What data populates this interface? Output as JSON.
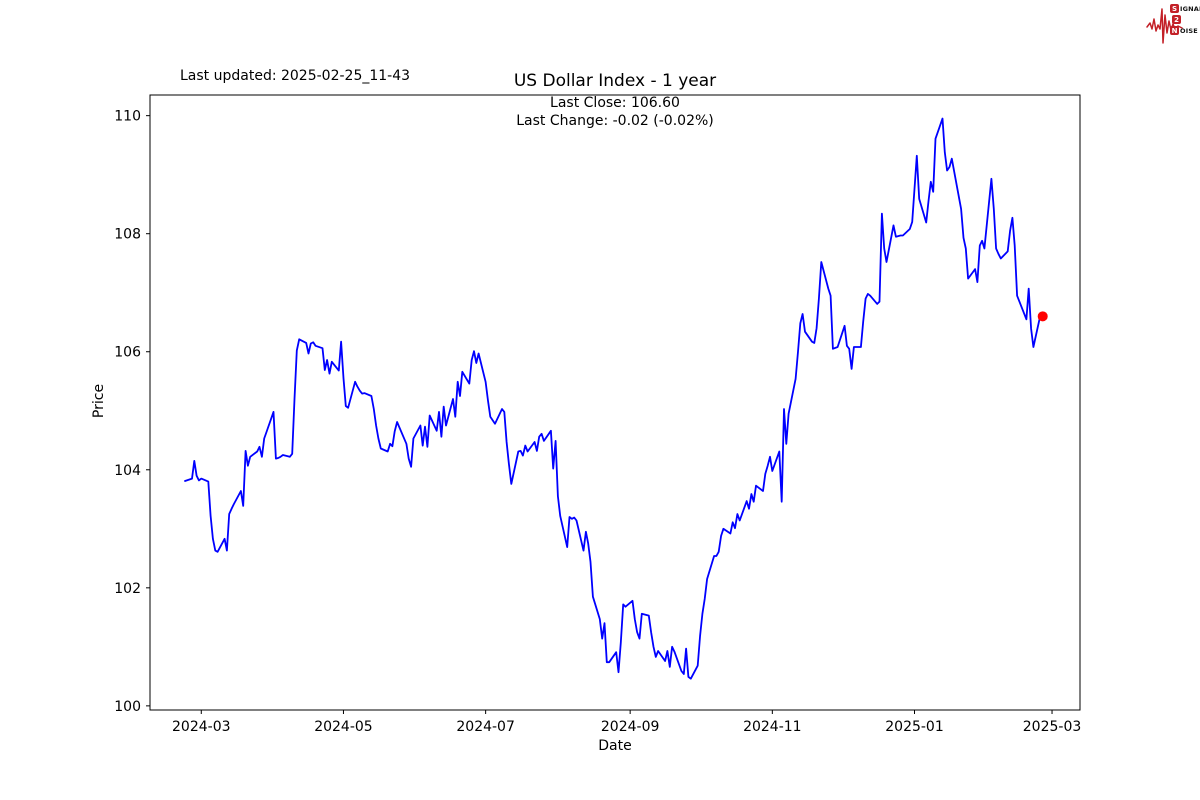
{
  "header": {
    "last_updated": "Last updated: 2025-02-25_11-43",
    "title": "US Dollar Index - 1 year",
    "annotation_line1": "Last Close: 106.60",
    "annotation_line2": "Last Change: -0.02 (-0.02%)"
  },
  "logo": {
    "line1_initial": "S",
    "line1_rest": "IGNAL",
    "line2_initial": "2",
    "line2_rest": "",
    "line3_initial": "N",
    "line3_rest": "OISE",
    "accent_color": "#c32027"
  },
  "chart_data": {
    "type": "line",
    "title": "US Dollar Index - 1 year",
    "xlabel": "Date",
    "ylabel": "Price",
    "legend": "none",
    "grid": false,
    "line_color": "#0000ff",
    "marker_color": "#ff0000",
    "axis_color": "#000000",
    "last_close": 106.6,
    "last_change": "-0.02 (-0.02%)",
    "ylim": [
      99.93,
      110.35
    ],
    "y_ticks": [
      100,
      102,
      104,
      106,
      108,
      110
    ],
    "xlim": [
      "2024-02-08",
      "2025-03-13"
    ],
    "x_tick_dates": [
      "2024-03-01",
      "2024-05-01",
      "2024-07-01",
      "2024-09-01",
      "2024-11-01",
      "2025-01-01",
      "2025-03-01"
    ],
    "x_tick_labels": [
      "2024-03",
      "2024-05",
      "2024-07",
      "2024-09",
      "2024-11",
      "2025-01",
      "2025-03"
    ],
    "points": [
      [
        "2024-02-23",
        103.81
      ],
      [
        "2024-02-26",
        103.85
      ],
      [
        "2024-02-27",
        104.15
      ],
      [
        "2024-02-28",
        103.9
      ],
      [
        "2024-02-29",
        103.82
      ],
      [
        "2024-03-01",
        103.85
      ],
      [
        "2024-03-04",
        103.8
      ],
      [
        "2024-03-05",
        103.22
      ],
      [
        "2024-03-06",
        102.83
      ],
      [
        "2024-03-07",
        102.63
      ],
      [
        "2024-03-08",
        102.61
      ],
      [
        "2024-03-11",
        102.83
      ],
      [
        "2024-03-12",
        102.63
      ],
      [
        "2024-03-13",
        103.25
      ],
      [
        "2024-03-14",
        103.34
      ],
      [
        "2024-03-15",
        103.42
      ],
      [
        "2024-03-18",
        103.64
      ],
      [
        "2024-03-19",
        103.39
      ],
      [
        "2024-03-20",
        104.32
      ],
      [
        "2024-03-21",
        104.07
      ],
      [
        "2024-03-22",
        104.22
      ],
      [
        "2024-03-25",
        104.31
      ],
      [
        "2024-03-26",
        104.39
      ],
      [
        "2024-03-27",
        104.22
      ],
      [
        "2024-03-28",
        104.53
      ],
      [
        "2024-03-29",
        104.64
      ],
      [
        "2024-04-01",
        104.98
      ],
      [
        "2024-04-02",
        104.19
      ],
      [
        "2024-04-03",
        104.2
      ],
      [
        "2024-04-04",
        104.22
      ],
      [
        "2024-04-05",
        104.25
      ],
      [
        "2024-04-08",
        104.22
      ],
      [
        "2024-04-09",
        104.27
      ],
      [
        "2024-04-10",
        105.2
      ],
      [
        "2024-04-11",
        106.02
      ],
      [
        "2024-04-12",
        106.21
      ],
      [
        "2024-04-15",
        106.15
      ],
      [
        "2024-04-16",
        105.97
      ],
      [
        "2024-04-17",
        106.14
      ],
      [
        "2024-04-18",
        106.16
      ],
      [
        "2024-04-19",
        106.1
      ],
      [
        "2024-04-22",
        106.06
      ],
      [
        "2024-04-23",
        105.69
      ],
      [
        "2024-04-24",
        105.86
      ],
      [
        "2024-04-25",
        105.63
      ],
      [
        "2024-04-26",
        105.83
      ],
      [
        "2024-04-29",
        105.68
      ],
      [
        "2024-04-30",
        106.17
      ],
      [
        "2024-05-01",
        105.55
      ],
      [
        "2024-05-02",
        105.08
      ],
      [
        "2024-05-03",
        105.05
      ],
      [
        "2024-05-06",
        105.49
      ],
      [
        "2024-05-07",
        105.41
      ],
      [
        "2024-05-08",
        105.34
      ],
      [
        "2024-05-09",
        105.29
      ],
      [
        "2024-05-10",
        105.3
      ],
      [
        "2024-05-13",
        105.25
      ],
      [
        "2024-05-14",
        105.03
      ],
      [
        "2024-05-15",
        104.75
      ],
      [
        "2024-05-16",
        104.53
      ],
      [
        "2024-05-17",
        104.36
      ],
      [
        "2024-05-20",
        104.31
      ],
      [
        "2024-05-21",
        104.44
      ],
      [
        "2024-05-22",
        104.4
      ],
      [
        "2024-05-23",
        104.65
      ],
      [
        "2024-05-24",
        104.81
      ],
      [
        "2024-05-28",
        104.44
      ],
      [
        "2024-05-29",
        104.19
      ],
      [
        "2024-05-30",
        104.05
      ],
      [
        "2024-05-31",
        104.53
      ],
      [
        "2024-06-03",
        104.75
      ],
      [
        "2024-06-04",
        104.41
      ],
      [
        "2024-06-05",
        104.73
      ],
      [
        "2024-06-06",
        104.39
      ],
      [
        "2024-06-07",
        104.92
      ],
      [
        "2024-06-10",
        104.66
      ],
      [
        "2024-06-11",
        104.98
      ],
      [
        "2024-06-12",
        104.56
      ],
      [
        "2024-06-13",
        105.07
      ],
      [
        "2024-06-14",
        104.75
      ],
      [
        "2024-06-17",
        105.2
      ],
      [
        "2024-06-18",
        104.9
      ],
      [
        "2024-06-19",
        105.49
      ],
      [
        "2024-06-20",
        105.25
      ],
      [
        "2024-06-21",
        105.66
      ],
      [
        "2024-06-24",
        105.46
      ],
      [
        "2024-06-25",
        105.86
      ],
      [
        "2024-06-26",
        106.01
      ],
      [
        "2024-06-27",
        105.81
      ],
      [
        "2024-06-28",
        105.97
      ],
      [
        "2024-07-01",
        105.49
      ],
      [
        "2024-07-02",
        105.17
      ],
      [
        "2024-07-03",
        104.9
      ],
      [
        "2024-07-05",
        104.78
      ],
      [
        "2024-07-08",
        105.03
      ],
      [
        "2024-07-09",
        104.98
      ],
      [
        "2024-07-10",
        104.47
      ],
      [
        "2024-07-11",
        104.1
      ],
      [
        "2024-07-12",
        103.76
      ],
      [
        "2024-07-15",
        104.31
      ],
      [
        "2024-07-16",
        104.32
      ],
      [
        "2024-07-17",
        104.24
      ],
      [
        "2024-07-18",
        104.41
      ],
      [
        "2024-07-19",
        104.31
      ],
      [
        "2024-07-22",
        104.47
      ],
      [
        "2024-07-23",
        104.32
      ],
      [
        "2024-07-24",
        104.56
      ],
      [
        "2024-07-25",
        104.61
      ],
      [
        "2024-07-26",
        104.49
      ],
      [
        "2024-07-29",
        104.66
      ],
      [
        "2024-07-30",
        104.02
      ],
      [
        "2024-07-31",
        104.49
      ],
      [
        "2024-08-01",
        103.55
      ],
      [
        "2024-08-02",
        103.22
      ],
      [
        "2024-08-05",
        102.69
      ],
      [
        "2024-08-06",
        103.2
      ],
      [
        "2024-08-07",
        103.17
      ],
      [
        "2024-08-08",
        103.19
      ],
      [
        "2024-08-09",
        103.14
      ],
      [
        "2024-08-12",
        102.63
      ],
      [
        "2024-08-13",
        102.95
      ],
      [
        "2024-08-14",
        102.75
      ],
      [
        "2024-08-15",
        102.44
      ],
      [
        "2024-08-16",
        101.85
      ],
      [
        "2024-08-19",
        101.47
      ],
      [
        "2024-08-20",
        101.14
      ],
      [
        "2024-08-21",
        101.4
      ],
      [
        "2024-08-22",
        100.74
      ],
      [
        "2024-08-23",
        100.74
      ],
      [
        "2024-08-26",
        100.91
      ],
      [
        "2024-08-27",
        100.57
      ],
      [
        "2024-08-28",
        101.07
      ],
      [
        "2024-08-29",
        101.72
      ],
      [
        "2024-08-30",
        101.68
      ],
      [
        "2024-09-02",
        101.78
      ],
      [
        "2024-09-03",
        101.47
      ],
      [
        "2024-09-04",
        101.25
      ],
      [
        "2024-09-05",
        101.14
      ],
      [
        "2024-09-06",
        101.56
      ],
      [
        "2024-09-09",
        101.53
      ],
      [
        "2024-09-10",
        101.25
      ],
      [
        "2024-09-11",
        101.0
      ],
      [
        "2024-09-12",
        100.83
      ],
      [
        "2024-09-13",
        100.93
      ],
      [
        "2024-09-16",
        100.76
      ],
      [
        "2024-09-17",
        100.93
      ],
      [
        "2024-09-18",
        100.66
      ],
      [
        "2024-09-19",
        101.0
      ],
      [
        "2024-09-20",
        100.92
      ],
      [
        "2024-09-23",
        100.59
      ],
      [
        "2024-09-24",
        100.54
      ],
      [
        "2024-09-25",
        100.97
      ],
      [
        "2024-09-26",
        100.49
      ],
      [
        "2024-09-27",
        100.46
      ],
      [
        "2024-09-30",
        100.68
      ],
      [
        "2024-10-01",
        101.19
      ],
      [
        "2024-10-02",
        101.56
      ],
      [
        "2024-10-03",
        101.81
      ],
      [
        "2024-10-04",
        102.15
      ],
      [
        "2024-10-07",
        102.54
      ],
      [
        "2024-10-08",
        102.54
      ],
      [
        "2024-10-09",
        102.61
      ],
      [
        "2024-10-10",
        102.88
      ],
      [
        "2024-10-11",
        103.0
      ],
      [
        "2024-10-14",
        102.92
      ],
      [
        "2024-10-15",
        103.11
      ],
      [
        "2024-10-16",
        103.01
      ],
      [
        "2024-10-17",
        103.25
      ],
      [
        "2024-10-18",
        103.14
      ],
      [
        "2024-10-21",
        103.47
      ],
      [
        "2024-10-22",
        103.34
      ],
      [
        "2024-10-23",
        103.59
      ],
      [
        "2024-10-24",
        103.46
      ],
      [
        "2024-10-25",
        103.73
      ],
      [
        "2024-10-28",
        103.64
      ],
      [
        "2024-10-29",
        103.93
      ],
      [
        "2024-10-30",
        104.07
      ],
      [
        "2024-10-31",
        104.22
      ],
      [
        "2024-11-01",
        103.98
      ],
      [
        "2024-11-04",
        104.31
      ],
      [
        "2024-11-05",
        103.46
      ],
      [
        "2024-11-06",
        105.03
      ],
      [
        "2024-11-07",
        104.44
      ],
      [
        "2024-11-08",
        104.95
      ],
      [
        "2024-11-11",
        105.54
      ],
      [
        "2024-11-12",
        106.0
      ],
      [
        "2024-11-13",
        106.48
      ],
      [
        "2024-11-14",
        106.64
      ],
      [
        "2024-11-15",
        106.34
      ],
      [
        "2024-11-18",
        106.17
      ],
      [
        "2024-11-19",
        106.15
      ],
      [
        "2024-11-20",
        106.4
      ],
      [
        "2024-11-21",
        106.9
      ],
      [
        "2024-11-22",
        107.52
      ],
      [
        "2024-11-25",
        107.07
      ],
      [
        "2024-11-26",
        106.95
      ],
      [
        "2024-11-27",
        106.05
      ],
      [
        "2024-11-29",
        106.08
      ],
      [
        "2024-12-02",
        106.44
      ],
      [
        "2024-12-03",
        106.1
      ],
      [
        "2024-12-04",
        106.05
      ],
      [
        "2024-12-05",
        105.71
      ],
      [
        "2024-12-06",
        106.08
      ],
      [
        "2024-12-09",
        106.08
      ],
      [
        "2024-12-10",
        106.51
      ],
      [
        "2024-12-11",
        106.9
      ],
      [
        "2024-12-12",
        106.98
      ],
      [
        "2024-12-13",
        106.95
      ],
      [
        "2024-12-16",
        106.81
      ],
      [
        "2024-12-17",
        106.85
      ],
      [
        "2024-12-18",
        108.34
      ],
      [
        "2024-12-19",
        107.75
      ],
      [
        "2024-12-20",
        107.52
      ],
      [
        "2024-12-23",
        108.14
      ],
      [
        "2024-12-24",
        107.95
      ],
      [
        "2024-12-26",
        107.97
      ],
      [
        "2024-12-27",
        107.97
      ],
      [
        "2024-12-30",
        108.08
      ],
      [
        "2024-12-31",
        108.2
      ],
      [
        "2025-01-02",
        109.32
      ],
      [
        "2025-01-03",
        108.59
      ],
      [
        "2025-01-06",
        108.19
      ],
      [
        "2025-01-07",
        108.55
      ],
      [
        "2025-01-08",
        108.88
      ],
      [
        "2025-01-09",
        108.71
      ],
      [
        "2025-01-10",
        109.61
      ],
      [
        "2025-01-13",
        109.95
      ],
      [
        "2025-01-14",
        109.38
      ],
      [
        "2025-01-15",
        109.07
      ],
      [
        "2025-01-16",
        109.13
      ],
      [
        "2025-01-17",
        109.27
      ],
      [
        "2025-01-21",
        108.42
      ],
      [
        "2025-01-22",
        107.93
      ],
      [
        "2025-01-23",
        107.75
      ],
      [
        "2025-01-24",
        107.24
      ],
      [
        "2025-01-27",
        107.4
      ],
      [
        "2025-01-28",
        107.18
      ],
      [
        "2025-01-29",
        107.8
      ],
      [
        "2025-01-30",
        107.88
      ],
      [
        "2025-01-31",
        107.75
      ],
      [
        "2025-02-03",
        108.93
      ],
      [
        "2025-02-04",
        108.42
      ],
      [
        "2025-02-05",
        107.75
      ],
      [
        "2025-02-06",
        107.66
      ],
      [
        "2025-02-07",
        107.58
      ],
      [
        "2025-02-10",
        107.7
      ],
      [
        "2025-02-11",
        108.05
      ],
      [
        "2025-02-12",
        108.27
      ],
      [
        "2025-02-13",
        107.8
      ],
      [
        "2025-02-14",
        106.95
      ],
      [
        "2025-02-18",
        106.55
      ],
      [
        "2025-02-19",
        107.07
      ],
      [
        "2025-02-20",
        106.39
      ],
      [
        "2025-02-21",
        106.08
      ],
      [
        "2025-02-24",
        106.62
      ],
      [
        "2025-02-25",
        106.6
      ]
    ]
  }
}
